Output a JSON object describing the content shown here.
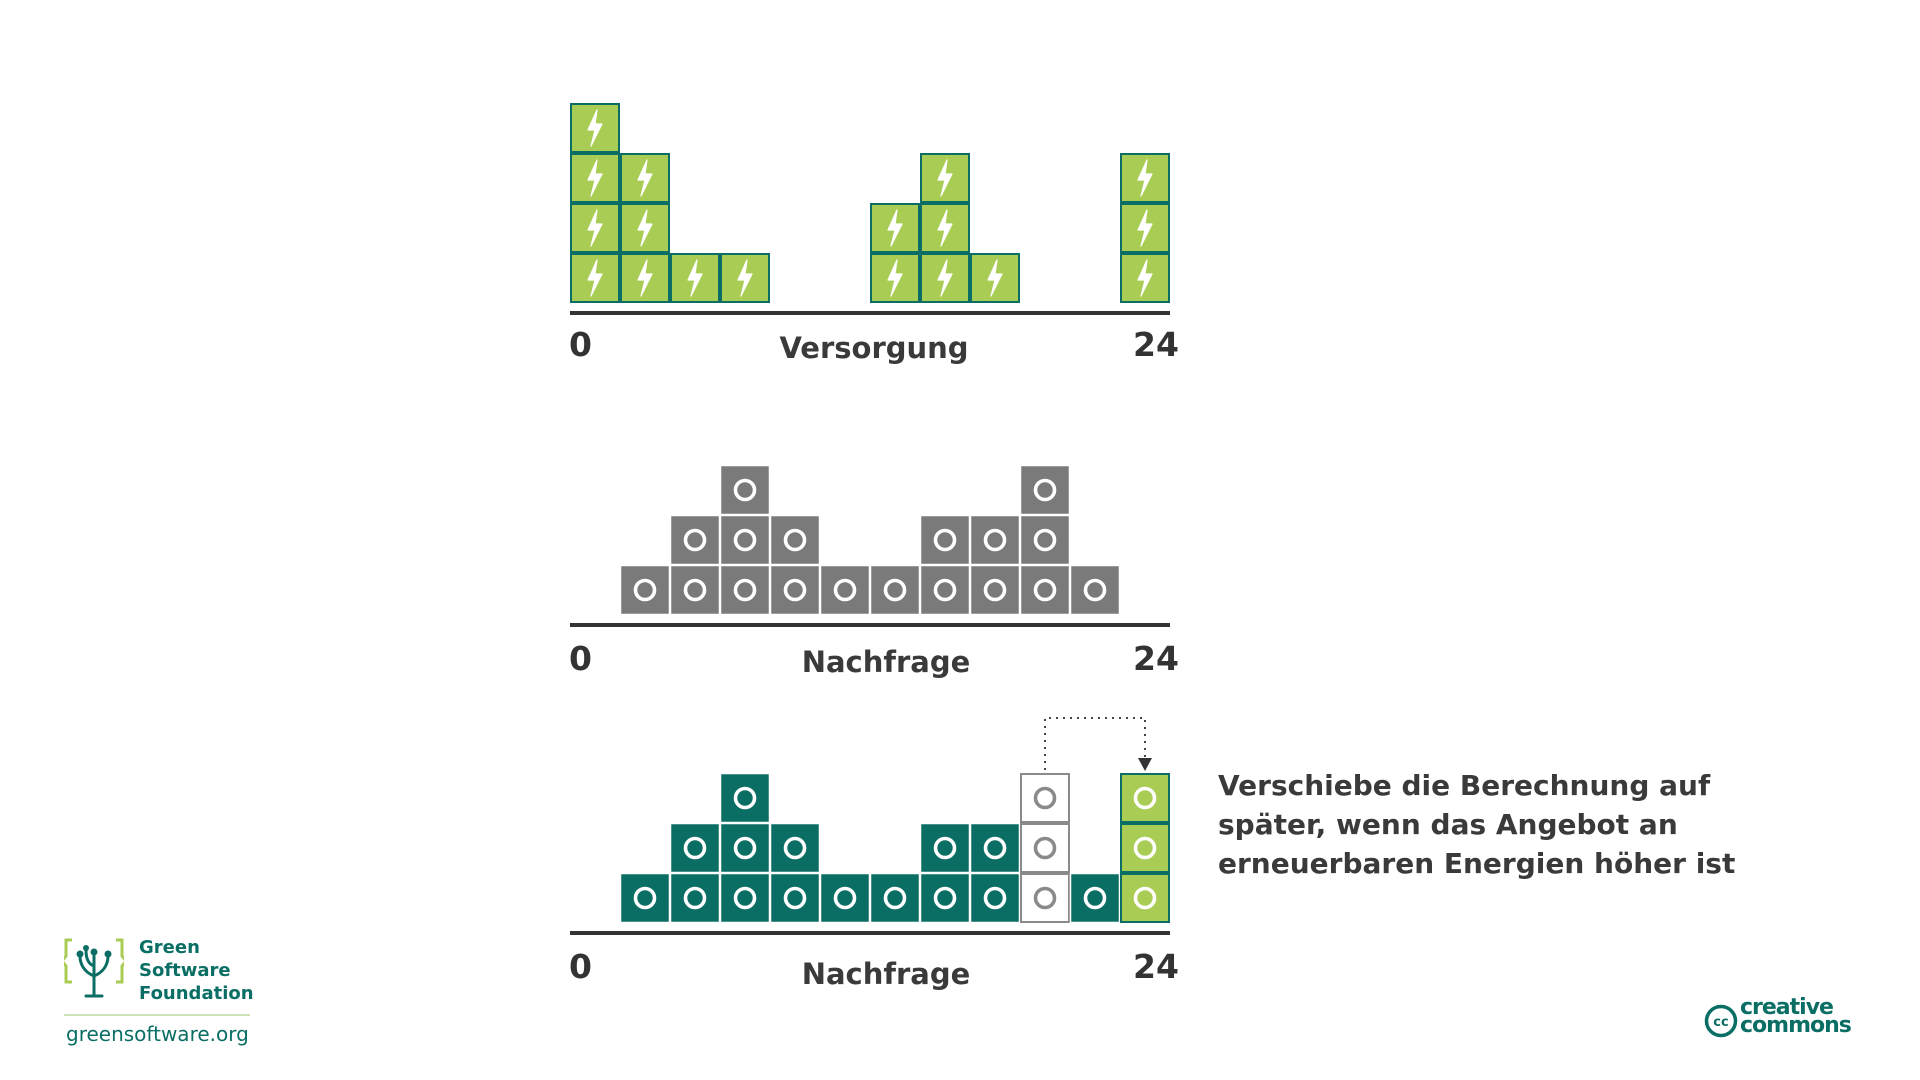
{
  "panels": [
    {
      "id": "supply",
      "title": "Versorgung",
      "axis_start": "0",
      "axis_end": "24",
      "kind": "supply",
      "stacks": [
        4,
        3,
        1,
        1,
        0,
        0,
        2,
        3,
        1,
        0,
        0,
        3
      ]
    },
    {
      "id": "demand",
      "title": "Nachfrage",
      "axis_start": "0",
      "axis_end": "24",
      "kind": "demand",
      "stacks": [
        0,
        1,
        2,
        3,
        2,
        1,
        1,
        2,
        2,
        3,
        1,
        0
      ]
    },
    {
      "id": "shifted",
      "title": "Nachfrage",
      "axis_start": "0",
      "axis_end": "24",
      "kind": "shifted",
      "stacks": [
        0,
        1,
        2,
        3,
        2,
        1,
        1,
        2,
        2,
        3,
        1,
        3
      ],
      "moved_from_slot": 9,
      "moved_to_slot": 11,
      "moved_count": 3
    }
  ],
  "caption": "Verschiebe die Berechnung auf später, wenn das Angebot an erneuerbaren Energien höher ist",
  "logo": {
    "name_lines": [
      "Green",
      "Software",
      "Foundation"
    ],
    "url": "greensoftware.org"
  },
  "license": {
    "text_lines": [
      "creative",
      "commons"
    ]
  },
  "colors": {
    "supply_fill": "#a9cd54",
    "supply_stroke": "#0b6e64",
    "demand_fill": "#7a7a7a",
    "shifted_fill": "#0b6e64",
    "moved_outline": "#8a8a8a",
    "axis": "#333333"
  },
  "icons": [
    "lightning-bolt-icon",
    "circle-icon",
    "dotted-arrow-icon",
    "green-software-foundation-logo",
    "creative-commons-logo"
  ]
}
